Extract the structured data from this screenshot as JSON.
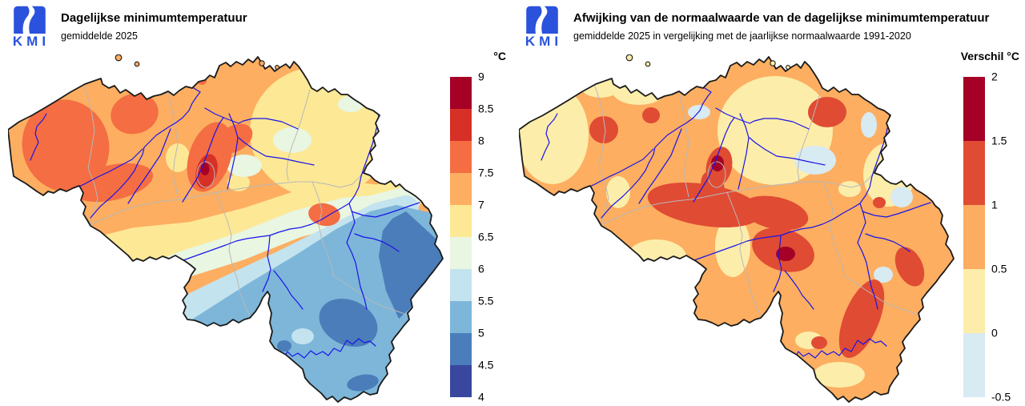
{
  "panels": [
    {
      "logo_text": "KMI",
      "title": "Dagelijkse minimumtemperatuur",
      "subtitle": "gemiddelde 2025",
      "legend": {
        "label": "°C",
        "ticks": [
          "9",
          "8.5",
          "8",
          "7.5",
          "7",
          "6.5",
          "6",
          "5.5",
          "5",
          "4.5",
          "4"
        ],
        "colors": [
          "#a50026",
          "#d73027",
          "#f46d43",
          "#fdae61",
          "#fde896",
          "#e8f6e2",
          "#c3e3ee",
          "#7db6d9",
          "#4a7db9",
          "#39489e"
        ]
      },
      "map": {
        "base_color": "#fdae61",
        "river_color": "#1a14e8",
        "province_border_color": "#b8b8b8",
        "country_border_color": "#1a1a1a"
      }
    },
    {
      "logo_text": "KMI",
      "title": "Afwijking van de normaalwaarde van de dagelijkse minimumtemperatuur",
      "subtitle": "gemiddelde 2025 in vergelijking met de jaarlijkse normaalwaarde 1991-2020",
      "legend": {
        "label": "Verschil °C",
        "ticks": [
          "2",
          "1.5",
          "1",
          "0.5",
          "0",
          "-0.5"
        ],
        "colors": [
          "#a50026",
          "#e04b33",
          "#fcad62",
          "#fcedaa",
          "#d8eaf2"
        ]
      },
      "map": {
        "base_color": "#fdae61",
        "river_color": "#1a14e8",
        "province_border_color": "#b8b8b8",
        "country_border_color": "#1a1a1a"
      }
    }
  ]
}
